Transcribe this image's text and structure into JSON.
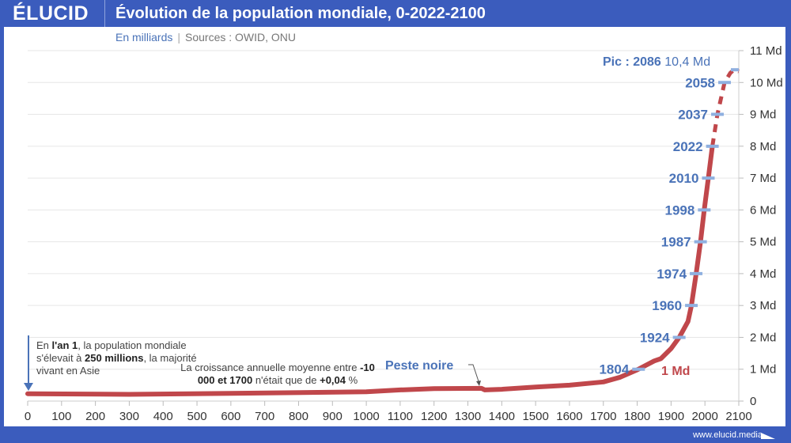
{
  "header": {
    "logo": "ÉLUCID",
    "title": "Évolution de la population mondiale, 0-2022-2100"
  },
  "subtitle": {
    "unit": "En milliards",
    "separator": "|",
    "sources": "Sources : OWID, ONU"
  },
  "footer": {
    "url": "www.elucid.media"
  },
  "colors": {
    "frame": "#3b5cbd",
    "line": "#c0474b",
    "milestone": "#4a73b8",
    "tick_mark": "#8fb0e0"
  },
  "annotations": {
    "year1": {
      "p1": "En ",
      "b1": "l'an 1",
      "p2": ", la population mondiale s'élevait à ",
      "b2": "250 millions",
      "p3": ", la majorité vivant en Asie"
    },
    "growth": {
      "p1": "La croissance annuelle moyenne entre ",
      "b1": "-10 000 et 1700",
      "p2": " n'était que de ",
      "b2": "+0,04",
      "p3": " %"
    },
    "plague": "Peste noire",
    "one_billion": "1 Md",
    "peak_label": "Pic : 2086",
    "peak_value": "10,4 Md"
  },
  "chart_data": {
    "type": "line",
    "title": "Évolution de la population mondiale, 0-2022-2100",
    "ylabel": "En milliards",
    "xlim": [
      0,
      2100
    ],
    "ylim": [
      0,
      11
    ],
    "x_ticks": [
      "0",
      "100",
      "200",
      "300",
      "400",
      "500",
      "600",
      "700",
      "800",
      "900",
      "1000",
      "1100",
      "1200",
      "1300",
      "1400",
      "1500",
      "1600",
      "1700",
      "1800",
      "1900",
      "2000",
      "2100"
    ],
    "y_ticks": [
      "0",
      "1 Md",
      "2 Md",
      "3 Md",
      "4 Md",
      "5 Md",
      "6 Md",
      "7 Md",
      "8 Md",
      "9 Md",
      "10 Md",
      "11 Md"
    ],
    "grid": true,
    "series": [
      {
        "style": "solid",
        "x": [
          0,
          300,
          600,
          1000,
          1100,
          1200,
          1340,
          1350,
          1400,
          1500,
          1600,
          1700,
          1750,
          1800,
          1850,
          1870,
          1900,
          1924,
          1950,
          1960,
          1974,
          1987,
          1998,
          2010,
          2022
        ],
        "y": [
          0.23,
          0.21,
          0.24,
          0.29,
          0.35,
          0.39,
          0.4,
          0.35,
          0.37,
          0.44,
          0.5,
          0.6,
          0.75,
          0.98,
          1.26,
          1.33,
          1.65,
          2.0,
          2.5,
          3.0,
          4.0,
          5.0,
          6.0,
          7.0,
          8.0
        ]
      },
      {
        "style": "dashed",
        "x": [
          2022,
          2037,
          2058,
          2075,
          2086,
          2100
        ],
        "y": [
          8.0,
          9.0,
          10.0,
          10.3,
          10.4,
          10.35
        ]
      }
    ],
    "milestones": [
      {
        "year": "1804",
        "value": 1
      },
      {
        "year": "1924",
        "value": 2
      },
      {
        "year": "1960",
        "value": 3
      },
      {
        "year": "1974",
        "value": 4
      },
      {
        "year": "1987",
        "value": 5
      },
      {
        "year": "1998",
        "value": 6
      },
      {
        "year": "2010",
        "value": 7
      },
      {
        "year": "2022",
        "value": 8
      },
      {
        "year": "2037",
        "value": 9
      },
      {
        "year": "2058",
        "value": 10
      }
    ],
    "peak": {
      "year": 2086,
      "value": 10.4
    }
  }
}
